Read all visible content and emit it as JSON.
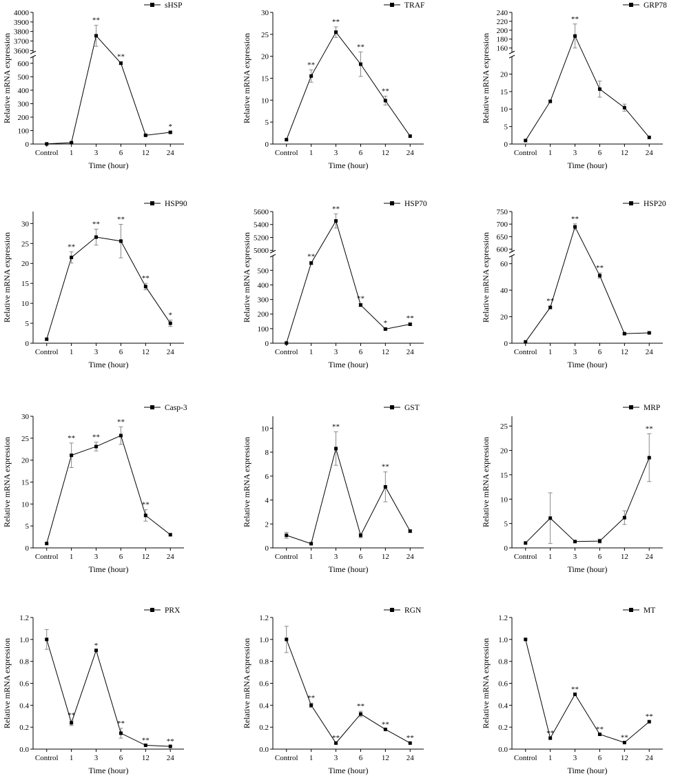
{
  "figure": {
    "x_title": "Time (hour)",
    "y_title": "Relative mRNA expression"
  },
  "chart_data": [
    {
      "type": "line",
      "title": "sHSP",
      "legend": "sHSP",
      "categories": [
        "Control",
        "1",
        "3",
        "6",
        "12",
        "24"
      ],
      "values": [
        1,
        10,
        3755,
        601,
        65,
        87
      ],
      "errors": [
        0,
        5,
        110,
        10,
        4,
        6
      ],
      "significance": [
        "",
        "",
        "**",
        "**",
        "",
        "*"
      ],
      "broken_axis": {
        "lower": {
          "ylim": [
            0,
            650
          ],
          "ticks": [
            0,
            100,
            200,
            300,
            400,
            500,
            600
          ]
        },
        "upper": {
          "ylim": [
            3580,
            4000
          ],
          "ticks": [
            3600,
            3700,
            3800,
            3900,
            4000
          ]
        }
      },
      "xlabel": "Time (hour)",
      "ylabel": "Relative mRNA expression"
    },
    {
      "type": "line",
      "title": "TRAF",
      "legend": "TRAF",
      "categories": [
        "Control",
        "1",
        "3",
        "6",
        "12",
        "24"
      ],
      "values": [
        1,
        15.5,
        25.5,
        18.2,
        9.9,
        1.8
      ],
      "errors": [
        0,
        1.4,
        1.2,
        2.8,
        1.0,
        0
      ],
      "significance": [
        "",
        "**",
        "**",
        "**",
        "**",
        ""
      ],
      "ylim": [
        0,
        30
      ],
      "yticks": [
        0,
        5,
        10,
        15,
        20,
        25,
        30
      ],
      "xlabel": "Time (hour)",
      "ylabel": "Relative mRNA expression"
    },
    {
      "type": "line",
      "title": "GRP78",
      "legend": "GRP78",
      "categories": [
        "Control",
        "1",
        "3",
        "6",
        "12",
        "24"
      ],
      "values": [
        1,
        12.2,
        187,
        15.7,
        10.4,
        1.9
      ],
      "errors": [
        0,
        0,
        27,
        2.3,
        1.0,
        0
      ],
      "significance": [
        "",
        "",
        "**",
        "",
        "",
        ""
      ],
      "broken_axis": {
        "lower": {
          "ylim": [
            0,
            25
          ],
          "ticks": [
            0,
            5,
            10,
            15,
            20
          ]
        },
        "upper": {
          "ylim": [
            150,
            240
          ],
          "ticks": [
            160,
            180,
            200,
            220,
            240
          ]
        }
      },
      "xlabel": "Time (hour)",
      "ylabel": "Relative mRNA expression"
    },
    {
      "type": "line",
      "title": "HSP90",
      "legend": "HSP90",
      "categories": [
        "Control",
        "1",
        "3",
        "6",
        "12",
        "24"
      ],
      "values": [
        1,
        21.5,
        26.6,
        25.6,
        14.2,
        5.0
      ],
      "errors": [
        0,
        1.4,
        2.0,
        4.2,
        0.8,
        0.8
      ],
      "significance": [
        "",
        "**",
        "**",
        "**",
        "**",
        "*"
      ],
      "ylim": [
        0,
        33
      ],
      "yticks": [
        0,
        5,
        10,
        15,
        20,
        25,
        30
      ],
      "xlabel": "Time (hour)",
      "ylabel": "Relative mRNA expression"
    },
    {
      "type": "line",
      "title": "HSP70",
      "legend": "HSP70",
      "categories": [
        "Control",
        "1",
        "3",
        "6",
        "12",
        "24"
      ],
      "values": [
        1,
        550,
        5455,
        262,
        97,
        130
      ],
      "errors": [
        0,
        10,
        110,
        10,
        6,
        8
      ],
      "significance": [
        "",
        "**",
        "**",
        "**",
        "*",
        "**"
      ],
      "broken_axis": {
        "lower": {
          "ylim": [
            0,
            600
          ],
          "ticks": [
            0,
            100,
            200,
            300,
            400,
            500
          ]
        },
        "upper": {
          "ylim": [
            4980,
            5600
          ],
          "ticks": [
            5000,
            5200,
            5400,
            5600
          ]
        }
      },
      "xlabel": "Time (hour)",
      "ylabel": "Relative mRNA expression"
    },
    {
      "type": "line",
      "title": "HSP20",
      "legend": "HSP20",
      "categories": [
        "Control",
        "1",
        "3",
        "6",
        "12",
        "24"
      ],
      "values": [
        1,
        27,
        689,
        51,
        7.2,
        7.8
      ],
      "errors": [
        0,
        1,
        12,
        2,
        0.4,
        0.4
      ],
      "significance": [
        "",
        "**",
        "**",
        "**",
        "",
        ""
      ],
      "broken_axis": {
        "lower": {
          "ylim": [
            0,
            66
          ],
          "ticks": [
            0,
            20,
            40,
            60
          ]
        },
        "upper": {
          "ylim": [
            590,
            750
          ],
          "ticks": [
            600,
            650,
            700,
            750
          ]
        }
      },
      "xlabel": "Time (hour)",
      "ylabel": "Relative mRNA expression"
    },
    {
      "type": "line",
      "title": "Casp-3",
      "legend": "Casp-3",
      "categories": [
        "Control",
        "1",
        "3",
        "6",
        "12",
        "24"
      ],
      "values": [
        1,
        21.1,
        23.1,
        25.6,
        7.4,
        3.0
      ],
      "errors": [
        0,
        2.8,
        1.0,
        2.0,
        1.3,
        0
      ],
      "significance": [
        "",
        "**",
        "**",
        "**",
        "**",
        ""
      ],
      "ylim": [
        0,
        30
      ],
      "yticks": [
        0,
        5,
        10,
        15,
        20,
        25,
        30
      ],
      "xlabel": "Time (hour)",
      "ylabel": "Relative mRNA expression"
    },
    {
      "type": "line",
      "title": "GST",
      "legend": "GST",
      "categories": [
        "Control",
        "1",
        "3",
        "6",
        "12",
        "24"
      ],
      "values": [
        1.05,
        0.35,
        8.3,
        1.05,
        5.1,
        1.4
      ],
      "errors": [
        0.25,
        0,
        1.4,
        0.2,
        1.25,
        0.1
      ],
      "significance": [
        "",
        "",
        "**",
        "",
        "**",
        ""
      ],
      "ylim": [
        0,
        11
      ],
      "yticks": [
        0,
        2,
        4,
        6,
        8,
        10
      ],
      "xlabel": "Time (hour)",
      "ylabel": "Relative mRNA expression"
    },
    {
      "type": "line",
      "title": "MRP",
      "legend": "MRP",
      "categories": [
        "Control",
        "1",
        "3",
        "6",
        "12",
        "24"
      ],
      "values": [
        1,
        6.1,
        1.3,
        1.4,
        6.2,
        18.5
      ],
      "errors": [
        0,
        5.2,
        0,
        0.4,
        1.4,
        4.9
      ],
      "significance": [
        "",
        "",
        "",
        "",
        "",
        "**"
      ],
      "ylim": [
        0,
        27
      ],
      "yticks": [
        0,
        5,
        10,
        15,
        20,
        25
      ],
      "xlabel": "Time (hour)",
      "ylabel": "Relative mRNA expression"
    },
    {
      "type": "line",
      "title": "PRX",
      "legend": "PRX",
      "categories": [
        "Control",
        "1",
        "3",
        "6",
        "12",
        "24"
      ],
      "values": [
        1.0,
        0.24,
        0.9,
        0.145,
        0.035,
        0.025
      ],
      "errors": [
        0.09,
        0.025,
        0,
        0.045,
        0,
        0
      ],
      "significance": [
        "",
        "**",
        "*",
        "**",
        "**",
        "**"
      ],
      "ylim": [
        0,
        1.2
      ],
      "yticks": [
        0.0,
        0.2,
        0.4,
        0.6,
        0.8,
        1.0,
        1.2
      ],
      "xlabel": "Time (hour)",
      "ylabel": "Relative mRNA expression"
    },
    {
      "type": "line",
      "title": "RGN",
      "legend": "RGN",
      "categories": [
        "Control",
        "1",
        "3",
        "6",
        "12",
        "24"
      ],
      "values": [
        1.0,
        0.4,
        0.055,
        0.32,
        0.18,
        0.055
      ],
      "errors": [
        0.12,
        0.02,
        0,
        0.025,
        0,
        0
      ],
      "significance": [
        "",
        "**",
        "**",
        "**",
        "**",
        "**"
      ],
      "ylim": [
        0,
        1.2
      ],
      "yticks": [
        0.0,
        0.2,
        0.4,
        0.6,
        0.8,
        1.0,
        1.2
      ],
      "xlabel": "Time (hour)",
      "ylabel": "Relative mRNA expression"
    },
    {
      "type": "line",
      "title": "MT",
      "legend": "MT",
      "categories": [
        "Control",
        "1",
        "3",
        "6",
        "12",
        "24"
      ],
      "values": [
        1.0,
        0.1,
        0.5,
        0.135,
        0.06,
        0.25
      ],
      "errors": [
        0,
        0,
        0,
        0,
        0,
        0
      ],
      "significance": [
        "",
        "**",
        "**",
        "**",
        "**",
        "**"
      ],
      "ylim": [
        0,
        1.2
      ],
      "yticks": [
        0.0,
        0.2,
        0.4,
        0.6,
        0.8,
        1.0,
        1.2
      ],
      "xlabel": "Time (hour)",
      "ylabel": "Relative mRNA expression"
    }
  ]
}
